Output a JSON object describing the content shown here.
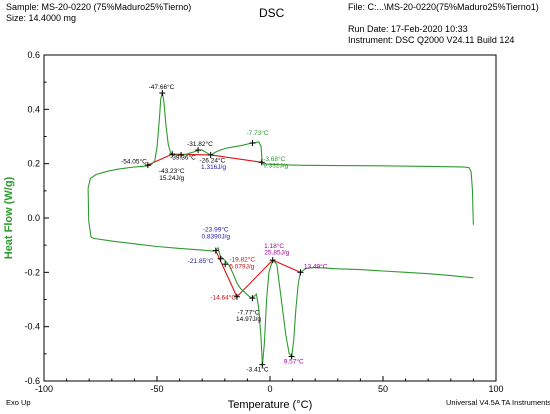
{
  "header": {
    "sample": "Sample: MS-20-0220 (75%Maduro25%Tierno)",
    "size": "Size:  14.4000 mg",
    "title": "DSC",
    "file": "File: C:...\\MS-20-0220(75%Maduro25%Tierno1)",
    "run_date": "Run Date: 17-Feb-2020 10:33",
    "instrument": "Instrument: DSC Q2000 V24.11 Build 124"
  },
  "footer": {
    "exo": "Exo Up",
    "software": "Universal V4.5A TA Instruments"
  },
  "colors": {
    "curve": "#2e9b2e",
    "baseline": "#e01010",
    "marker": "#000000",
    "onset_text": "#000000",
    "enthalpy_text": "#1a1aa0",
    "area_text": "#c01010",
    "peak_text": "#a000a0",
    "axis_label": "#2e9b2e"
  },
  "chart_data": {
    "type": "line",
    "xlabel": "Temperature (°C)",
    "ylabel": "Heat Flow (W/g)",
    "xlim": [
      -100,
      100
    ],
    "ylim": [
      -0.6,
      0.6
    ],
    "xticks": [
      -100,
      -50,
      0,
      50,
      100
    ],
    "yticks": [
      -0.6,
      -0.4,
      -0.2,
      0.0,
      0.2,
      0.4,
      0.6
    ],
    "xtick_labels": [
      "-100",
      "-50",
      "0",
      "50",
      "100"
    ],
    "ytick_labels": [
      "-0.6",
      "-0.4",
      "-0.2",
      "0.0",
      "0.2",
      "0.4",
      "0.6"
    ],
    "grid": false,
    "curve": [
      [
        -80.5,
        0.11
      ],
      [
        -79.5,
        0.145
      ],
      [
        -77,
        0.16
      ],
      [
        -72,
        0.172
      ],
      [
        -67,
        0.18
      ],
      [
        -62,
        0.186
      ],
      [
        -57,
        0.19
      ],
      [
        -53,
        0.193
      ],
      [
        -51,
        0.21
      ],
      [
        -50,
        0.26
      ],
      [
        -49,
        0.36
      ],
      [
        -48.3,
        0.44
      ],
      [
        -47.6,
        0.46
      ],
      [
        -47,
        0.43
      ],
      [
        -46,
        0.34
      ],
      [
        -45,
        0.27
      ],
      [
        -44,
        0.24
      ],
      [
        -43.2,
        0.235
      ],
      [
        -41,
        0.232
      ],
      [
        -39,
        0.232
      ],
      [
        -37,
        0.235
      ],
      [
        -35,
        0.24
      ],
      [
        -33,
        0.245
      ],
      [
        -31.8,
        0.25
      ],
      [
        -30,
        0.25
      ],
      [
        -28,
        0.24
      ],
      [
        -26.2,
        0.232
      ],
      [
        -24,
        0.243
      ],
      [
        -22,
        0.25
      ],
      [
        -20,
        0.256
      ],
      [
        -16,
        0.262
      ],
      [
        -12,
        0.268
      ],
      [
        -8,
        0.276
      ],
      [
        -5,
        0.28
      ],
      [
        -4,
        0.265
      ],
      [
        -3.6,
        0.22
      ],
      [
        -3.5,
        0.2
      ],
      [
        -1,
        0.198
      ],
      [
        5,
        0.196
      ],
      [
        15,
        0.194
      ],
      [
        30,
        0.193
      ],
      [
        50,
        0.192
      ],
      [
        70,
        0.19
      ],
      [
        85,
        0.188
      ],
      [
        88,
        0.186
      ],
      [
        89,
        0.17
      ],
      [
        89.6,
        0.1
      ],
      [
        89.8,
        0.03
      ],
      [
        90,
        -0.025
      ]
    ],
    "return": [
      [
        -80.5,
        0.11
      ],
      [
        -80.2,
        -0.01
      ],
      [
        -79.2,
        -0.07
      ],
      [
        -78,
        -0.075
      ],
      [
        -70,
        -0.085
      ],
      [
        -60,
        -0.095
      ],
      [
        -50,
        -0.105
      ],
      [
        -40,
        -0.112
      ],
      [
        -30,
        -0.118
      ],
      [
        -25,
        -0.122
      ],
      [
        -23.9,
        -0.12
      ],
      [
        -23,
        -0.11
      ],
      [
        -22,
        -0.14
      ],
      [
        -20,
        -0.155
      ],
      [
        -18,
        -0.175
      ],
      [
        -16,
        -0.21
      ],
      [
        -14.6,
        -0.24
      ],
      [
        -13,
        -0.26
      ],
      [
        -11,
        -0.275
      ],
      [
        -9,
        -0.29
      ],
      [
        -7.8,
        -0.295
      ],
      [
        -6,
        -0.28
      ],
      [
        -5,
        -0.33
      ],
      [
        -4,
        -0.44
      ],
      [
        -3.5,
        -0.52
      ],
      [
        -3.3,
        -0.54
      ],
      [
        -2.5,
        -0.46
      ],
      [
        -1.5,
        -0.3
      ],
      [
        -0.5,
        -0.2
      ],
      [
        1.2,
        -0.155
      ],
      [
        3,
        -0.17
      ],
      [
        5,
        -0.3
      ],
      [
        7,
        -0.43
      ],
      [
        8.5,
        -0.5
      ],
      [
        9.6,
        -0.51
      ],
      [
        10.5,
        -0.45
      ],
      [
        11.5,
        -0.33
      ],
      [
        12.5,
        -0.24
      ],
      [
        13.5,
        -0.2
      ],
      [
        16,
        -0.185
      ],
      [
        20,
        -0.182
      ],
      [
        30,
        -0.187
      ],
      [
        40,
        -0.19
      ],
      [
        50,
        -0.195
      ],
      [
        60,
        -0.2
      ],
      [
        70,
        -0.205
      ],
      [
        80,
        -0.212
      ],
      [
        90,
        -0.22
      ]
    ],
    "baseline_segments": [
      [
        [
          -54.05,
          0.195
        ],
        [
          -43.23,
          0.235
        ]
      ],
      [
        [
          -43.23,
          0.235
        ],
        [
          -26.24,
          0.232
        ]
      ],
      [
        [
          -26.24,
          0.232
        ],
        [
          -3.68,
          0.205
        ]
      ],
      [
        [
          -23.99,
          -0.12
        ],
        [
          -14.64,
          -0.29
        ]
      ],
      [
        [
          -14.64,
          -0.29
        ],
        [
          1.18,
          -0.155
        ]
      ],
      [
        [
          1.18,
          -0.155
        ],
        [
          13.49,
          -0.2
        ]
      ]
    ],
    "markers": [
      [
        -54.05,
        0.195
      ],
      [
        -47.66,
        0.46
      ],
      [
        -43.23,
        0.235
      ],
      [
        -39.36,
        0.232
      ],
      [
        -31.82,
        0.25
      ],
      [
        -26.24,
        0.232
      ],
      [
        -7.73,
        0.276
      ],
      [
        -3.68,
        0.205
      ],
      [
        -23.99,
        -0.12
      ],
      [
        -21.85,
        -0.15
      ],
      [
        -19.82,
        -0.17
      ],
      [
        -14.64,
        -0.29
      ],
      [
        -7.77,
        -0.295
      ],
      [
        -3.41,
        -0.54
      ],
      [
        1.18,
        -0.155
      ],
      [
        9.57,
        -0.51
      ],
      [
        13.49,
        -0.2
      ]
    ],
    "annotations": [
      {
        "text": "-47.66°C",
        "x": -48.0,
        "y": 0.475,
        "color": "#000000",
        "anchor": "middle"
      },
      {
        "text": "-54.05°C",
        "x": -54.5,
        "y": 0.2,
        "color": "#000000",
        "anchor": "end"
      },
      {
        "text": "-43.23°C",
        "x": -43.5,
        "y": 0.165,
        "color": "#000000",
        "anchor": "middle"
      },
      {
        "text": "15.24J/g",
        "x": -43.5,
        "y": 0.14,
        "color": "#000000",
        "anchor": "middle"
      },
      {
        "text": "-39.36°C",
        "x": -38.5,
        "y": 0.215,
        "color": "#000000",
        "anchor": "middle"
      },
      {
        "text": "-31.82°C",
        "x": -31.0,
        "y": 0.265,
        "color": "#000000",
        "anchor": "middle"
      },
      {
        "text": "-26.24°C",
        "x": -25.5,
        "y": 0.205,
        "color": "#000000",
        "anchor": "middle"
      },
      {
        "text": "1.316J/g",
        "x": -25.0,
        "y": 0.18,
        "color": "#1a1aa0",
        "anchor": "middle"
      },
      {
        "text": "-7.73°C",
        "x": -5.5,
        "y": 0.305,
        "color": "#2e9b2e",
        "anchor": "middle"
      },
      {
        "text": "-3.68°C",
        "x": -3.0,
        "y": 0.21,
        "color": "#2e9b2e",
        "anchor": "start"
      },
      {
        "text": "9.332J/g",
        "x": -3.0,
        "y": 0.185,
        "color": "#2e9b2e",
        "anchor": "start"
      },
      {
        "text": "-23.99°C",
        "x": -24.0,
        "y": -0.05,
        "color": "#1a1aa0",
        "anchor": "middle"
      },
      {
        "text": "0.8390J/g",
        "x": -24.0,
        "y": -0.075,
        "color": "#1a1aa0",
        "anchor": "middle"
      },
      {
        "text": "-21.85°C",
        "x": -25.0,
        "y": -0.165,
        "color": "#1a1aa0",
        "anchor": "end"
      },
      {
        "text": "-19.82°C",
        "x": -18.0,
        "y": -0.16,
        "color": "#c01010",
        "anchor": "start"
      },
      {
        "text": "5.079J/g",
        "x": -18.0,
        "y": -0.185,
        "color": "#c01010",
        "anchor": "start"
      },
      {
        "text": "-14.64°C",
        "x": -15.0,
        "y": -0.3,
        "color": "#c01010",
        "anchor": "end"
      },
      {
        "text": "-7.77°C",
        "x": -9.5,
        "y": -0.355,
        "color": "#000000",
        "anchor": "middle"
      },
      {
        "text": "14.97J/g",
        "x": -9.5,
        "y": -0.38,
        "color": "#000000",
        "anchor": "middle"
      },
      {
        "text": "-3.41°C",
        "x": -5.5,
        "y": -0.565,
        "color": "#000000",
        "anchor": "middle"
      },
      {
        "text": "1.18°C",
        "x": 1.8,
        "y": -0.11,
        "color": "#a000a0",
        "anchor": "middle"
      },
      {
        "text": "25.85J/g",
        "x": 3.0,
        "y": -0.135,
        "color": "#a000a0",
        "anchor": "middle"
      },
      {
        "text": "9.57°C",
        "x": 10.5,
        "y": -0.535,
        "color": "#a000a0",
        "anchor": "middle"
      },
      {
        "text": "13.49°C",
        "x": 15.0,
        "y": -0.185,
        "color": "#a000a0",
        "anchor": "start"
      }
    ]
  }
}
